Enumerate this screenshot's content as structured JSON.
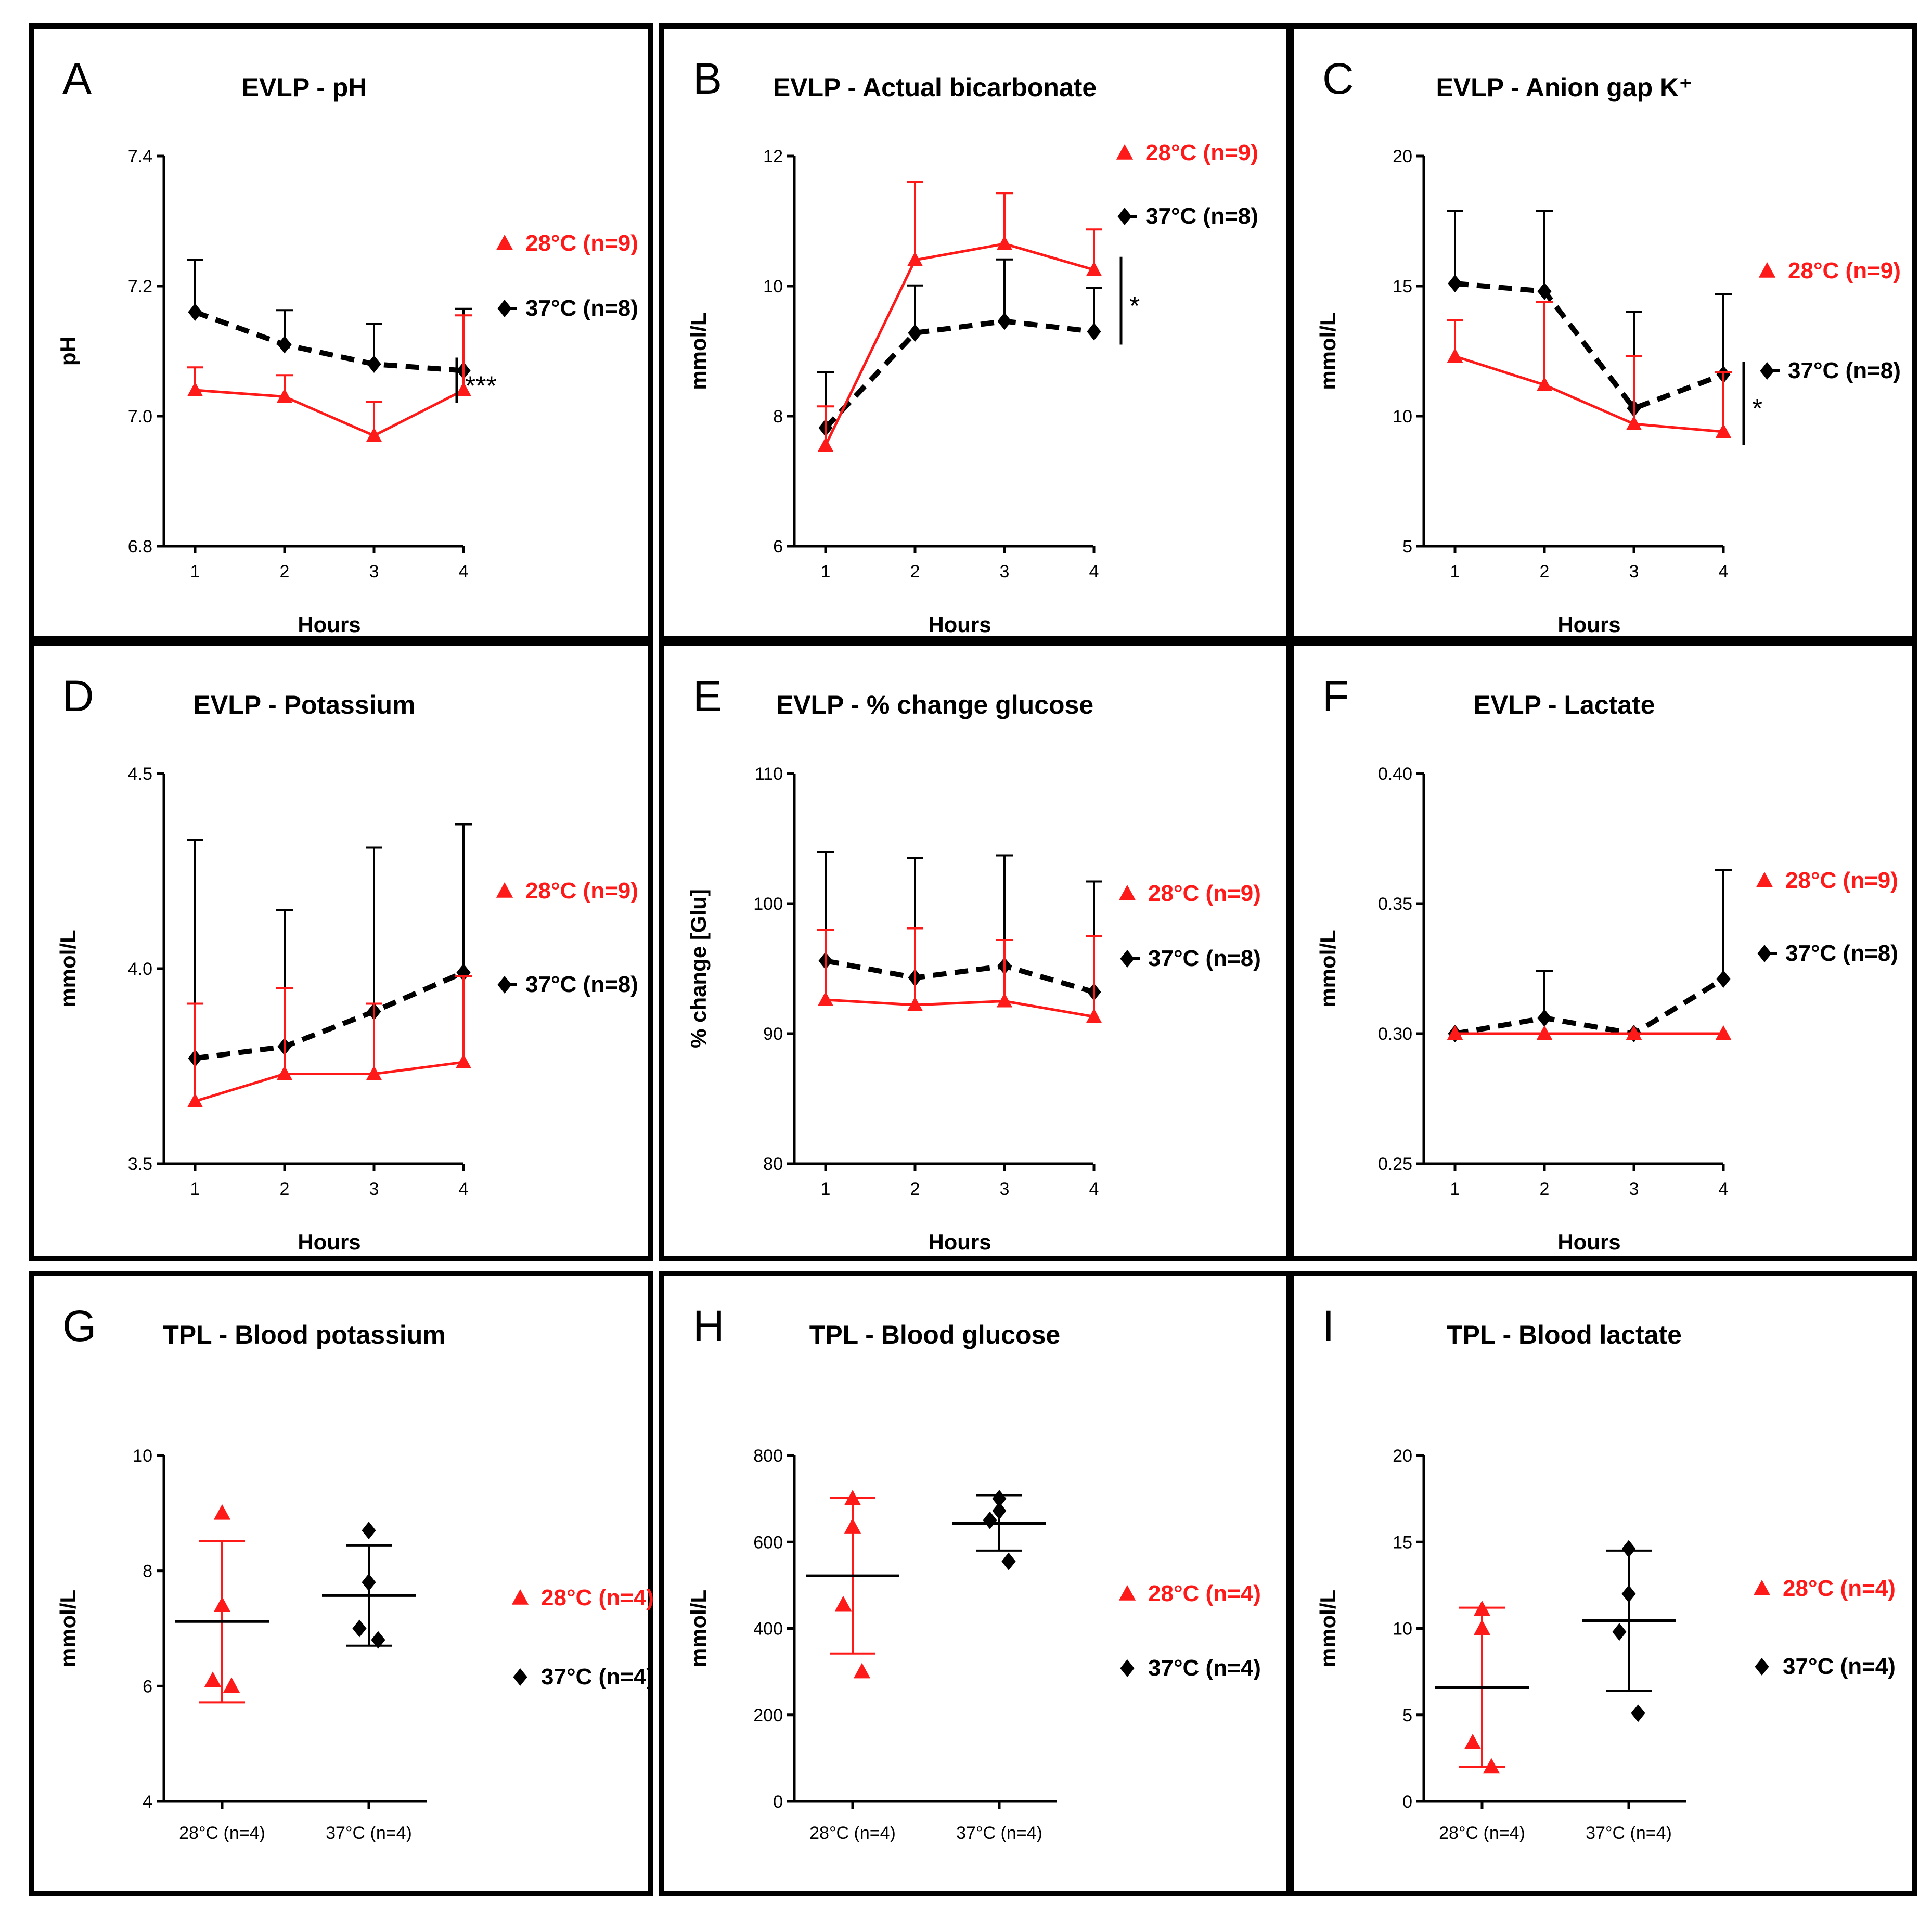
{
  "colors": {
    "t28": "#ff1a1a",
    "t37": "#000000"
  },
  "chart_data": [
    {
      "id": "A",
      "type": "line",
      "letter": "A",
      "title": "EVLP - pH",
      "xlabel": "Hours",
      "ylabel": "pH",
      "ylim": [
        6.8,
        7.4
      ],
      "yticks": [
        "6.8",
        "7.0",
        "7.2",
        "7.4"
      ],
      "x": [
        1,
        2,
        3,
        4
      ],
      "xticks": [
        "1",
        "2",
        "3",
        "4"
      ],
      "series": [
        {
          "name": "28°C (n=9)",
          "values": [
            7.04,
            7.03,
            6.97,
            7.04
          ],
          "err": [
            0.035,
            0.033,
            0.052,
            0.115
          ]
        },
        {
          "name": "37°C (n=8)",
          "values": [
            7.16,
            7.11,
            7.08,
            7.07
          ],
          "err": [
            0.08,
            0.053,
            0.062,
            0.095
          ]
        }
      ],
      "significance": "***"
    },
    {
      "id": "B",
      "type": "line",
      "letter": "B",
      "title": "EVLP - Actual bicarbonate",
      "xlabel": "Hours",
      "ylabel": "mmol/L",
      "ylim": [
        6,
        12
      ],
      "yticks": [
        "6",
        "8",
        "10",
        "12"
      ],
      "x": [
        1,
        2,
        3,
        4
      ],
      "xticks": [
        "1",
        "2",
        "3",
        "4"
      ],
      "series": [
        {
          "name": "28°C (n=9)",
          "values": [
            7.55,
            10.4,
            10.65,
            10.25
          ],
          "err": [
            0.6,
            1.2,
            0.78,
            0.62
          ]
        },
        {
          "name": "37°C (n=8)",
          "values": [
            7.82,
            9.28,
            9.46,
            9.3
          ],
          "err": [
            0.86,
            0.73,
            0.95,
            0.67
          ]
        }
      ],
      "significance": "*"
    },
    {
      "id": "C",
      "type": "line",
      "letter": "C",
      "title": "EVLP - Anion gap K⁺",
      "xlabel": "Hours",
      "ylabel": "mmol/L",
      "ylim": [
        5,
        20
      ],
      "yticks": [
        "5",
        "10",
        "15",
        "20"
      ],
      "x": [
        1,
        2,
        3,
        4
      ],
      "xticks": [
        "1",
        "2",
        "3",
        "4"
      ],
      "series": [
        {
          "name": "28°C (n=9)",
          "values": [
            12.3,
            11.2,
            9.7,
            9.4
          ],
          "err": [
            1.4,
            3.2,
            2.6,
            2.3
          ]
        },
        {
          "name": "37°C (n=8)",
          "values": [
            15.1,
            14.8,
            10.3,
            11.6
          ],
          "err": [
            2.8,
            3.1,
            3.7,
            3.1
          ]
        }
      ],
      "significance": "*"
    },
    {
      "id": "D",
      "type": "line",
      "letter": "D",
      "title": "EVLP - Potassium",
      "xlabel": "Hours",
      "ylabel": "mmol/L",
      "ylim": [
        3.5,
        4.5
      ],
      "yticks": [
        "3.5",
        "4.0",
        "4.5"
      ],
      "x": [
        1,
        2,
        3,
        4
      ],
      "xticks": [
        "1",
        "2",
        "3",
        "4"
      ],
      "series": [
        {
          "name": "28°C (n=9)",
          "values": [
            3.66,
            3.73,
            3.73,
            3.76
          ],
          "err": [
            0.25,
            0.22,
            0.18,
            0.22
          ]
        },
        {
          "name": "37°C (n=8)",
          "values": [
            3.77,
            3.8,
            3.89,
            3.99
          ],
          "err": [
            0.56,
            0.35,
            0.42,
            0.38
          ]
        }
      ],
      "significance": ""
    },
    {
      "id": "E",
      "type": "line",
      "letter": "E",
      "title": "EVLP - % change  glucose",
      "xlabel": "Hours",
      "ylabel": "% change [Glu]",
      "ylim": [
        80,
        110
      ],
      "yticks": [
        "80",
        "90",
        "100",
        "110"
      ],
      "x": [
        1,
        2,
        3,
        4
      ],
      "xticks": [
        "1",
        "2",
        "3",
        "4"
      ],
      "series": [
        {
          "name": "28°C (n=9)",
          "values": [
            92.6,
            92.2,
            92.5,
            91.3
          ],
          "err": [
            5.4,
            5.9,
            4.7,
            6.2
          ]
        },
        {
          "name": "37°C (n=8)",
          "values": [
            95.6,
            94.3,
            95.2,
            93.2
          ],
          "err": [
            8.4,
            9.2,
            8.5,
            8.5
          ]
        }
      ],
      "significance": ""
    },
    {
      "id": "F",
      "type": "line",
      "letter": "F",
      "title": "EVLP - Lactate",
      "xlabel": "Hours",
      "ylabel": "mmol/L",
      "ylim": [
        0.25,
        0.4
      ],
      "yticks": [
        "0.25",
        "0.30",
        "0.35",
        "0.40"
      ],
      "x": [
        1,
        2,
        3,
        4
      ],
      "xticks": [
        "1",
        "2",
        "3",
        "4"
      ],
      "series": [
        {
          "name": "28°C (n=9)",
          "values": [
            0.3,
            0.3,
            0.3,
            0.3
          ],
          "err": [
            0,
            0,
            0,
            0
          ]
        },
        {
          "name": "37°C (n=8)",
          "values": [
            0.3,
            0.306,
            0.3,
            0.321
          ],
          "err": [
            0,
            0.018,
            0,
            0.042
          ]
        }
      ],
      "significance": ""
    },
    {
      "id": "G",
      "type": "scatter",
      "letter": "G",
      "title": "TPL - Blood potassium",
      "xlabel": "",
      "ylabel": "mmol/L",
      "ylim": [
        4,
        10
      ],
      "yticks": [
        "4",
        "6",
        "8",
        "10"
      ],
      "groups": [
        {
          "label": "28°C (n=4)",
          "legend": "28°C (n=4)",
          "points": [
            9.0,
            7.4,
            6.1,
            6.0
          ],
          "mean": 7.12,
          "sd_low": 5.72,
          "sd_high": 8.52
        },
        {
          "label": "37°C (n=4)",
          "legend": "37°C (n=4)",
          "points": [
            8.7,
            7.8,
            7.0,
            6.8
          ],
          "mean": 7.57,
          "sd_low": 6.7,
          "sd_high": 8.44
        }
      ]
    },
    {
      "id": "H",
      "type": "scatter",
      "letter": "H",
      "title": "TPL - Blood glucose",
      "xlabel": "",
      "ylabel": "mmol/L",
      "ylim": [
        0,
        800
      ],
      "yticks": [
        "0",
        "200",
        "400",
        "600",
        "800"
      ],
      "groups": [
        {
          "label": "28°C (n=4)",
          "legend": "28°C (n=4)",
          "points": [
            700,
            635,
            455,
            300
          ],
          "mean": 522,
          "sd_low": 342,
          "sd_high": 702
        },
        {
          "label": "37°C (n=4)",
          "legend": "37°C (n=4)",
          "points": [
            700,
            672,
            650,
            555
          ],
          "mean": 643,
          "sd_low": 580,
          "sd_high": 708
        }
      ]
    },
    {
      "id": "I",
      "type": "scatter",
      "letter": "I",
      "title": "TPL - Blood lactate",
      "xlabel": "",
      "ylabel": "mmol/L",
      "ylim": [
        0,
        20
      ],
      "yticks": [
        "0",
        "5",
        "10",
        "15",
        "20"
      ],
      "groups": [
        {
          "label": "28°C (n=4)",
          "legend": "28°C (n=4)",
          "points": [
            11.1,
            10.0,
            3.4,
            2.0
          ],
          "mean": 6.6,
          "sd_low": 2.0,
          "sd_high": 11.2
        },
        {
          "label": "37°C (n=4)",
          "legend": "37°C (n=4)",
          "points": [
            14.6,
            12.0,
            9.8,
            5.1
          ],
          "mean": 10.45,
          "sd_low": 6.4,
          "sd_high": 14.5
        }
      ]
    }
  ]
}
